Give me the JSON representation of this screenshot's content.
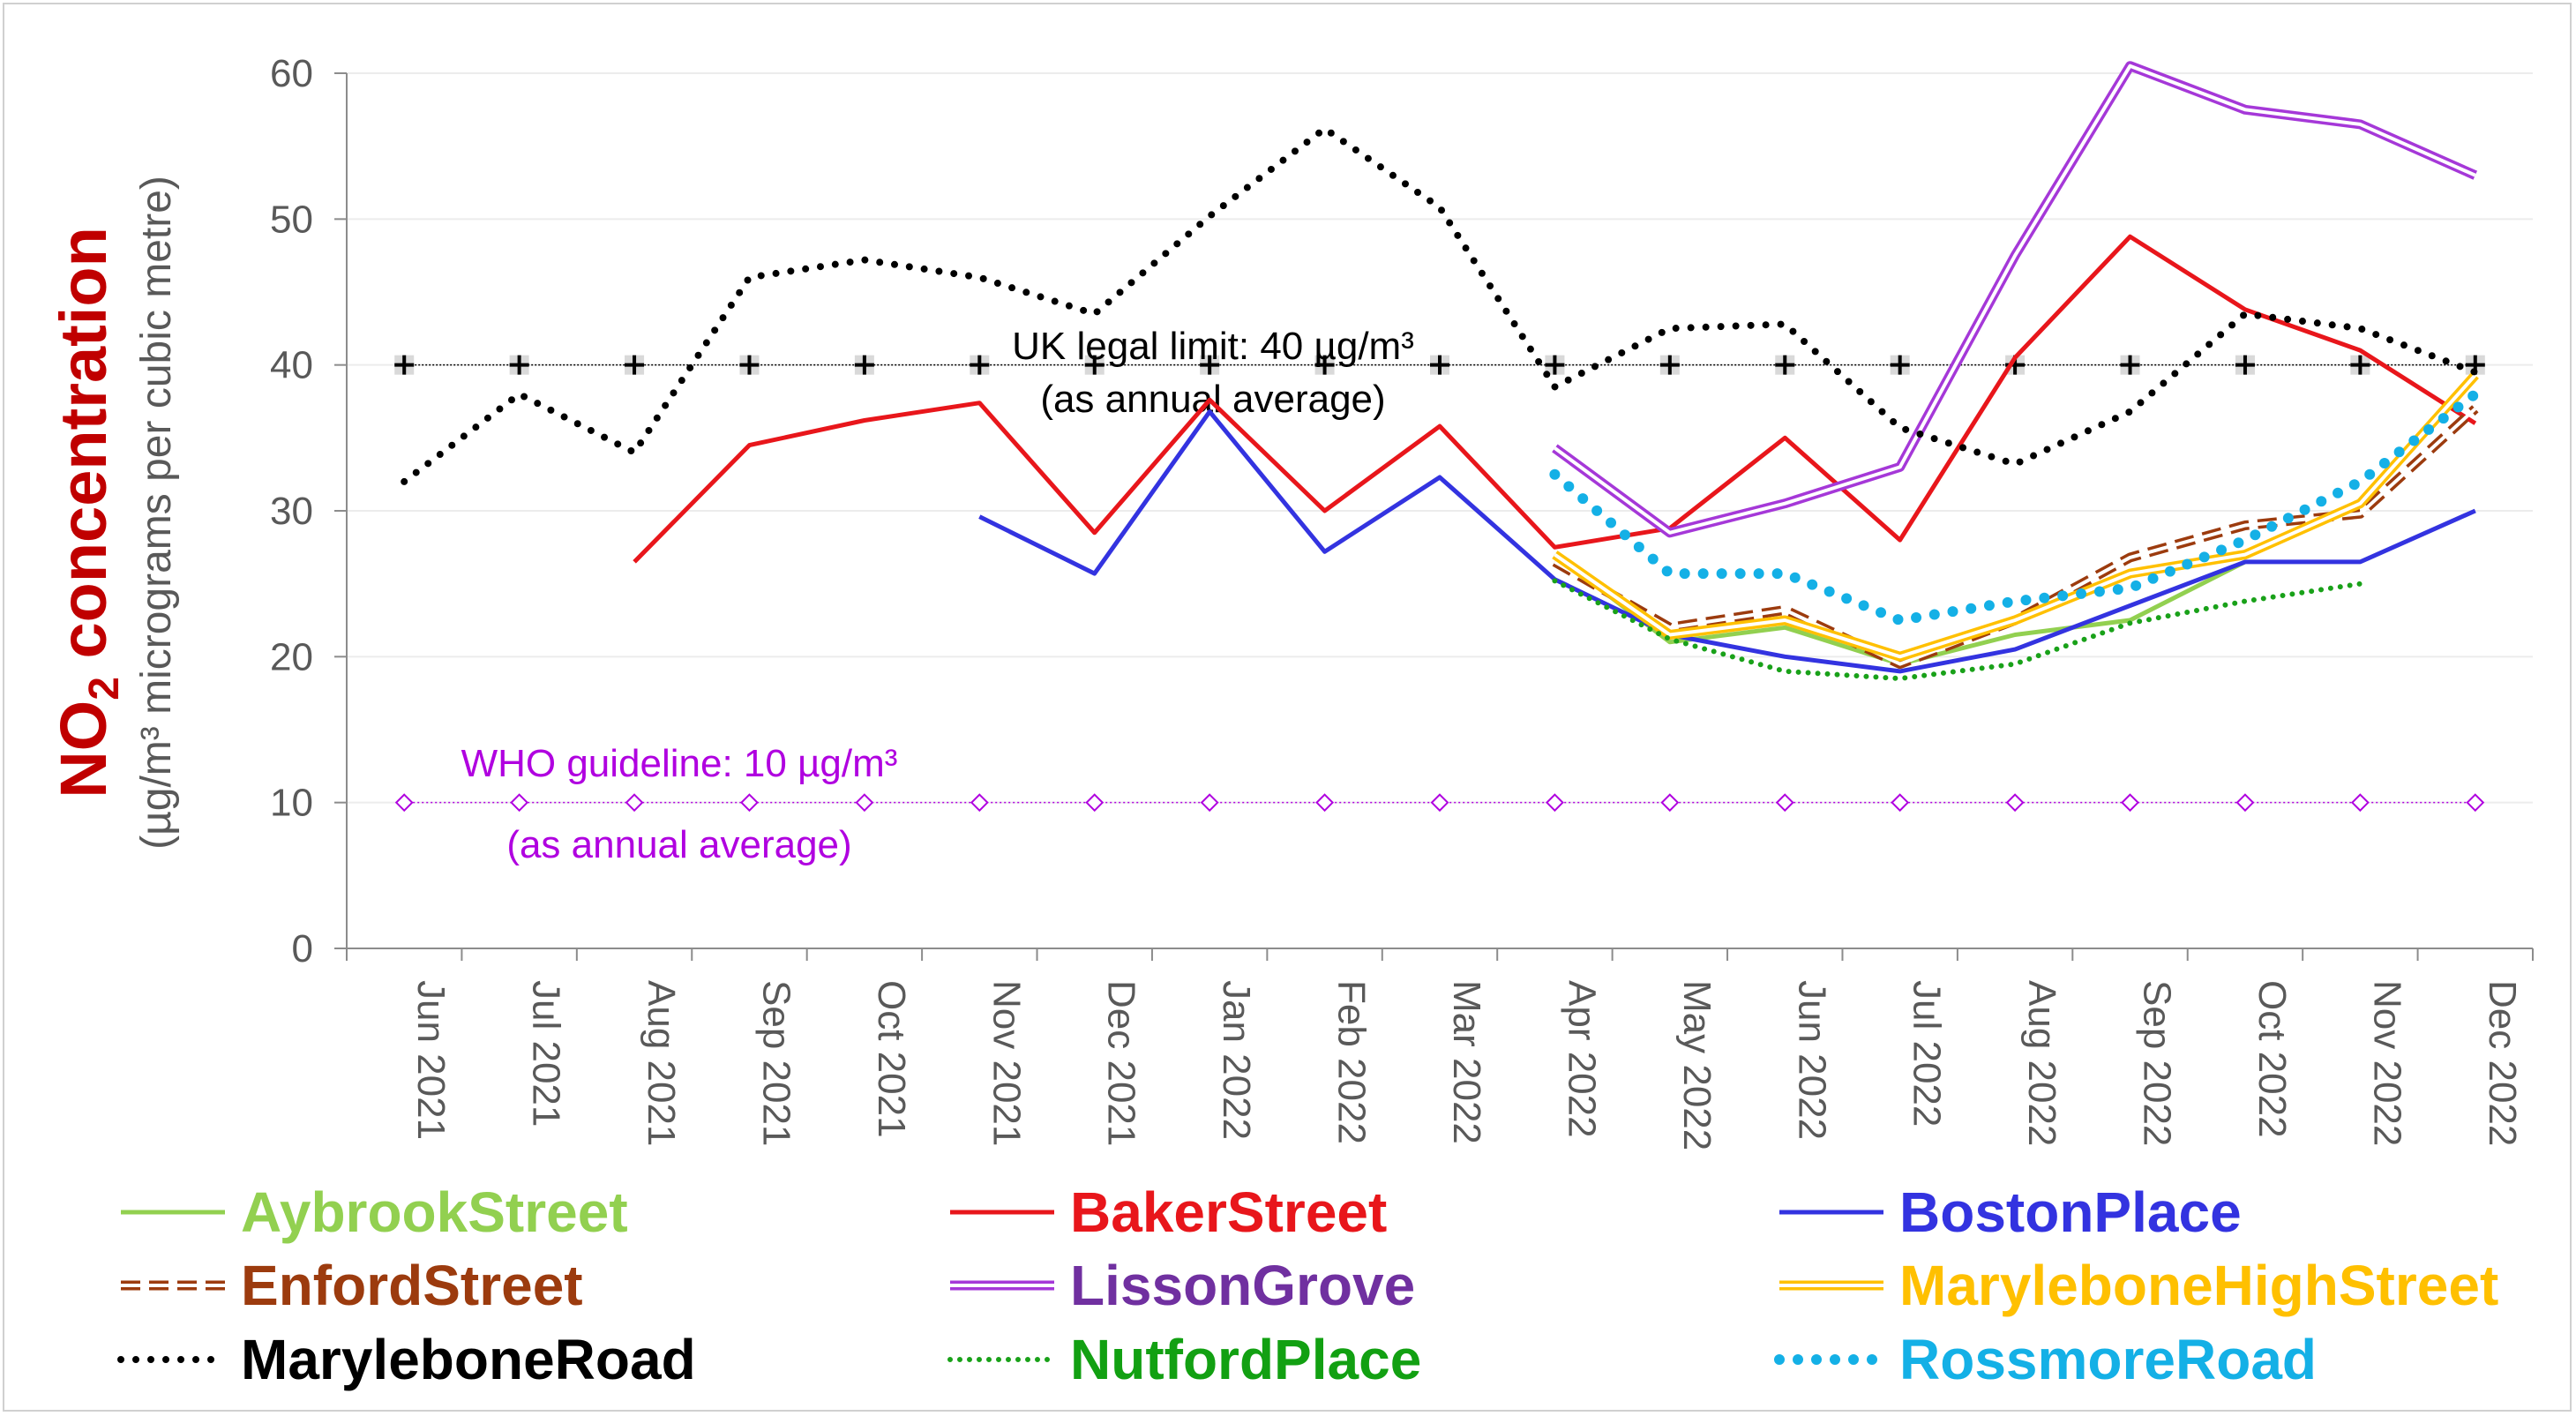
{
  "chart_data": {
    "type": "line",
    "title": "",
    "ylabel_main": "NO",
    "ylabel_sub": "2",
    "ylabel_main_rest": " concentration",
    "ylabel_units": "(µg/m³ micrograms per cubic metre)",
    "ylim": [
      0,
      60
    ],
    "yticks": [
      "0",
      "10",
      "20",
      "30",
      "40",
      "50",
      "60"
    ],
    "categories": [
      "Jun 2021",
      "Jul 2021",
      "Aug 2021",
      "Sep 2021",
      "Oct 2021",
      "Nov 2021",
      "Dec 2021",
      "Jan 2022",
      "Feb 2022",
      "Mar 2022",
      "Apr 2022",
      "May 2022",
      "Jun 2022",
      "Jul 2022",
      "Aug 2022",
      "Sep 2022",
      "Oct 2022",
      "Nov 2022",
      "Dec 2022"
    ],
    "legend_placement": "bottom",
    "grid": true,
    "reference_lines": [
      {
        "id": "uk",
        "value": 40,
        "label_line1": "UK legal limit: 40 µg/m³",
        "label_line2": "(as annual average)",
        "color": "#000000",
        "marker": "plus"
      },
      {
        "id": "who",
        "value": 10,
        "label_line1": "WHO guideline: 10 µg/m³",
        "label_line2": "(as annual average)",
        "color": "#b000e0",
        "marker": "diamond"
      }
    ],
    "series": [
      {
        "name": "AybrookStreet",
        "color": "#92d050",
        "style": "solid",
        "values": [
          null,
          null,
          null,
          null,
          null,
          null,
          null,
          null,
          null,
          null,
          27,
          21,
          22,
          19.5,
          21.5,
          22.5,
          26.5,
          null,
          null
        ]
      },
      {
        "name": "BakerStreet",
        "color": "#e8161b",
        "style": "solid",
        "values": [
          null,
          null,
          26.5,
          34.5,
          36.2,
          37.4,
          28.5,
          37.6,
          30,
          35.8,
          27.5,
          28.8,
          35,
          28,
          40.5,
          48.8,
          43.8,
          41,
          36
        ]
      },
      {
        "name": "BostonPlace",
        "color": "#3333e0",
        "style": "solid",
        "values": [
          null,
          null,
          null,
          null,
          null,
          29.6,
          25.7,
          36.8,
          27.2,
          32.3,
          25.3,
          21.5,
          20,
          19,
          20.5,
          23.5,
          26.5,
          26.5,
          30
        ]
      },
      {
        "name": "EnfordStreet",
        "color": "#9c3b0e",
        "style": "double-dash",
        "values": [
          null,
          null,
          null,
          null,
          null,
          null,
          null,
          null,
          null,
          null,
          26.5,
          22,
          23.2,
          19.5,
          22.5,
          26.8,
          29,
          29.8,
          37
        ]
      },
      {
        "name": "LissonGrove",
        "color": "#a538d8",
        "style": "double",
        "values": [
          null,
          null,
          null,
          null,
          null,
          null,
          null,
          null,
          null,
          null,
          34.3,
          28.5,
          30.5,
          33,
          47.5,
          60.5,
          57.5,
          56.5,
          53
        ]
      },
      {
        "name": "MaryleboneHighStreet",
        "color": "#ffc000",
        "style": "double",
        "values": [
          null,
          null,
          null,
          null,
          null,
          null,
          null,
          null,
          null,
          null,
          27,
          21.5,
          22.5,
          20,
          22.5,
          25.7,
          27,
          30.5,
          39.3
        ]
      },
      {
        "name": "MaryleboneRoad",
        "color": "#000000",
        "style": "dotted",
        "values": [
          32,
          38,
          34,
          46,
          47.2,
          46,
          43.5,
          50.2,
          56.2,
          50.8,
          38.5,
          42.5,
          42.8,
          35.7,
          33.2,
          36.8,
          43.5,
          42.5,
          39.5
        ]
      },
      {
        "name": "NutfordPlace",
        "color": "#19a119",
        "style": "dotted-small",
        "values": [
          null,
          null,
          null,
          null,
          null,
          null,
          null,
          null,
          null,
          null,
          25.2,
          21.2,
          19,
          18.5,
          19.5,
          22.3,
          23.8,
          25,
          null
        ]
      },
      {
        "name": "RossmoreRoad",
        "color": "#14b0e6",
        "style": "dotted-big",
        "values": [
          null,
          null,
          null,
          null,
          null,
          null,
          null,
          null,
          null,
          null,
          32.5,
          25.7,
          25.7,
          22.5,
          23.8,
          24.7,
          28,
          32,
          38
        ]
      }
    ],
    "legend_text_colors": {
      "AybrookStreet": "#92d050",
      "BakerStreet": "#e8161b",
      "BostonPlace": "#3333e0",
      "EnfordStreet": "#9c3b0e",
      "LissonGrove": "#7030a0",
      "MaryleboneHighStreet": "#ffc000",
      "MaryleboneRoad": "#000000",
      "NutfordPlace": "#12a012",
      "RossmoreRoad": "#14b0e6"
    },
    "ylabel_colors": {
      "main": "#c00000",
      "units": "#595959"
    }
  }
}
